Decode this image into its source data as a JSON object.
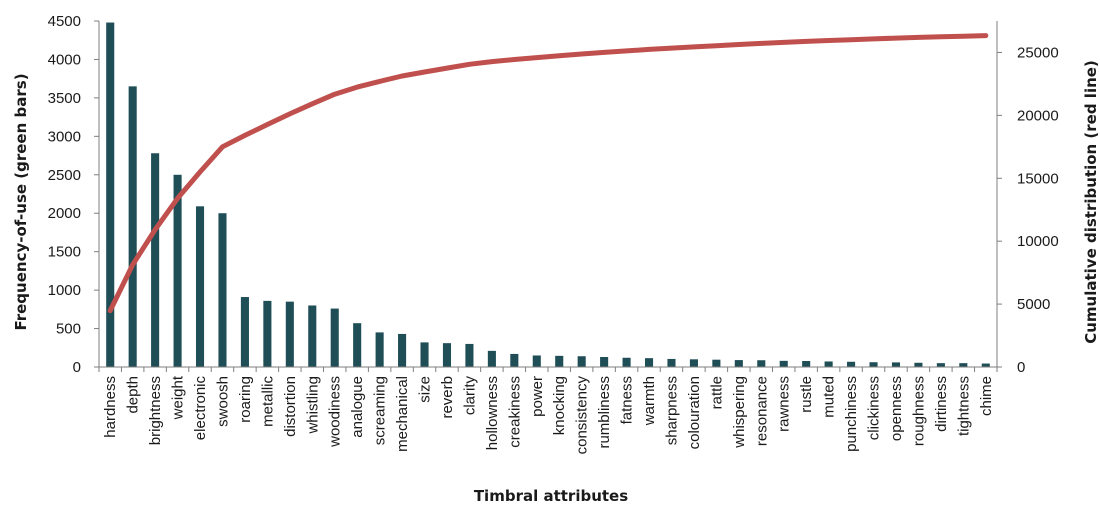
{
  "chart_data": {
    "type": "bar",
    "title": "",
    "xlabel": "Timbral attributes",
    "ylabel": "Frequency-of-use (green bars)",
    "y2label": "Cumulative distribution (red line)",
    "ylim": [
      0,
      4500
    ],
    "yticks": [
      0,
      500,
      1000,
      1500,
      2000,
      2500,
      3000,
      3500,
      4000,
      4500
    ],
    "y2lim": [
      0,
      27500
    ],
    "y2ticks": [
      0,
      5000,
      10000,
      15000,
      20000,
      25000
    ],
    "grid": false,
    "legend": "none",
    "categories": [
      "hardness",
      "depth",
      "brightness",
      "weight",
      "electronic",
      "swoosh",
      "roaring",
      "metallic",
      "distortion",
      "whistling",
      "woodiness",
      "analogue",
      "screaming",
      "mechanical",
      "size",
      "reverb",
      "clarity",
      "hollowness",
      "creakiness",
      "power",
      "knocking",
      "consistency",
      "rumbliness",
      "fatness",
      "warmth",
      "sharpness",
      "colouration",
      "rattle",
      "whispering",
      "resonance",
      "rawness",
      "rustle",
      "muted",
      "punchiness",
      "clickiness",
      "openness",
      "roughness",
      "dirtiness",
      "tightness",
      "chime"
    ],
    "series": [
      {
        "kind": "bar",
        "axis": "left",
        "color": "#1f4e57",
        "values": [
          4480,
          3650,
          2780,
          2500,
          2090,
          2000,
          910,
          860,
          850,
          800,
          760,
          570,
          450,
          430,
          320,
          310,
          300,
          210,
          170,
          150,
          145,
          140,
          130,
          120,
          115,
          105,
          100,
          95,
          90,
          88,
          80,
          78,
          72,
          68,
          62,
          60,
          55,
          50,
          50,
          45
        ]
      },
      {
        "kind": "line",
        "axis": "right",
        "color": "#c0504d",
        "values": [
          4480,
          8130,
          10910,
          13410,
          15500,
          17500,
          18410,
          19270,
          20120,
          20920,
          21680,
          22250,
          22700,
          23130,
          23450,
          23760,
          24060,
          24270,
          24440,
          24590,
          24735,
          24875,
          25005,
          25125,
          25240,
          25345,
          25445,
          25540,
          25630,
          25718,
          25798,
          25876,
          25948,
          26016,
          26078,
          26138,
          26193,
          26243,
          26293,
          26338
        ]
      }
    ]
  }
}
